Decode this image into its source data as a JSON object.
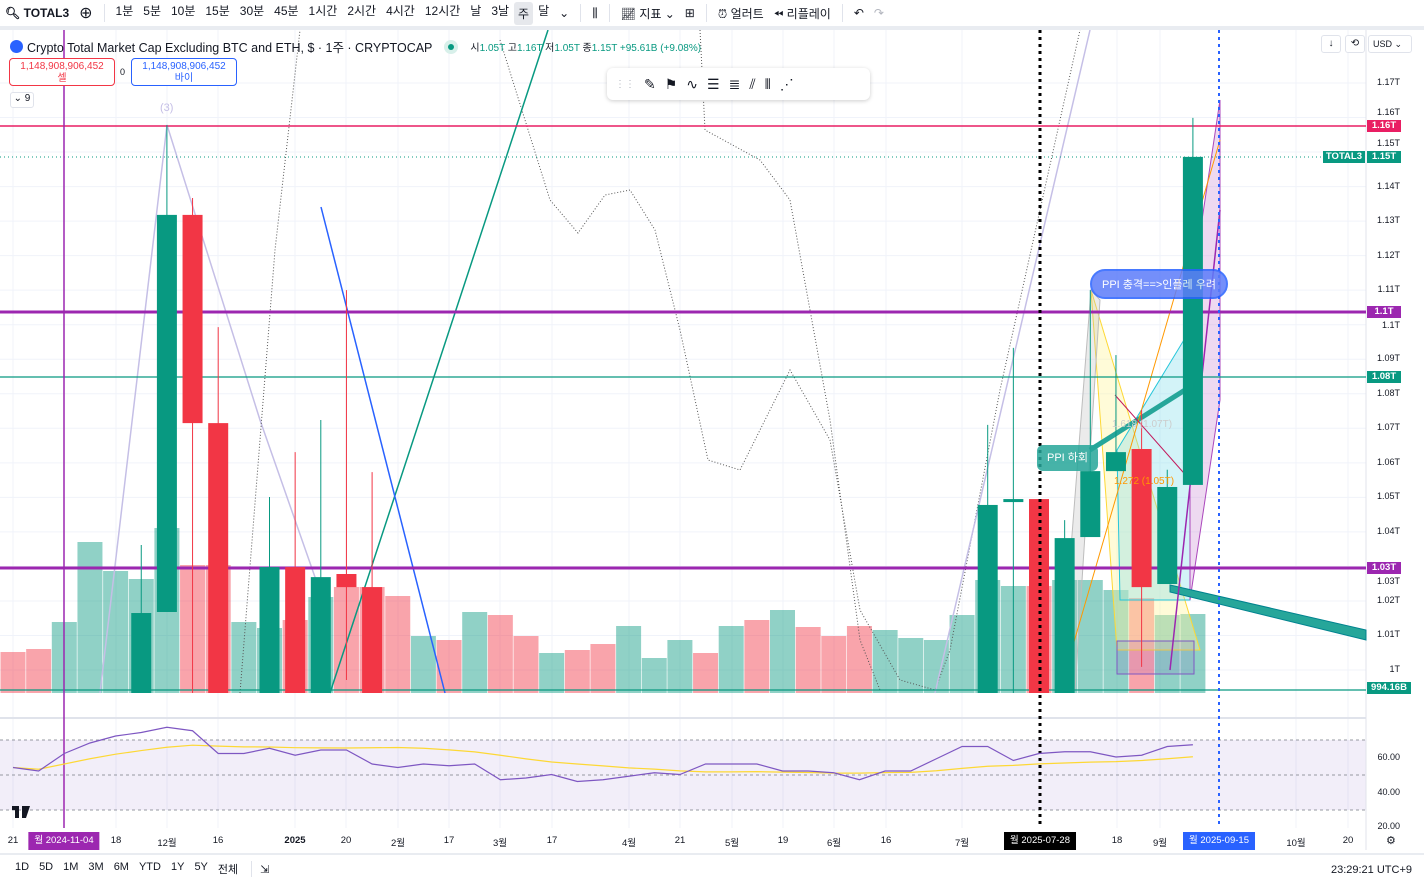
{
  "toolbar": {
    "symbol": "TOTAL3",
    "intervals": [
      "1분",
      "5분",
      "10분",
      "15분",
      "30분",
      "45분",
      "1시간",
      "2시간",
      "4시간",
      "12시간",
      "날",
      "3날",
      "주",
      "달"
    ],
    "active_interval": "주",
    "indicators": "지표",
    "alerts": "얼러트",
    "replay": "리플레이"
  },
  "legend": {
    "title": "Crypto Total Market Cap Excluding BTC and ETH, $ · 1주 · CRYPTOCAP",
    "o_k": "시",
    "o": "1.05T",
    "h_k": "고",
    "h": "1.16T",
    "l_k": "저",
    "l": "1.05T",
    "c_k": "종",
    "c": "1.15T",
    "change": "+95.61B (+9.08%)"
  },
  "trade": {
    "sell_price": "1,148,908,906,452",
    "sell_label": "셀",
    "spread": "0",
    "buy_price": "1,148,908,906,452",
    "buy_label": "바이"
  },
  "collapse_label": "9",
  "currency": "USD",
  "price_axis": [
    "1.17T",
    "1.16T",
    "1.15T",
    "1.14T",
    "1.13T",
    "1.12T",
    "1.11T",
    "1.1T",
    "1.09T",
    "1.08T",
    "1.07T",
    "1.06T",
    "1.05T",
    "1.04T",
    "1.03T",
    "1.02T",
    "1.01T",
    "1T"
  ],
  "price_tags": {
    "pink": "1.16T",
    "symbol_name": "TOTAL3",
    "last": "1.15T",
    "purple_top": "1.1T",
    "teal": "1.08T",
    "purple_low": "1.03T",
    "bottom": "994.16B"
  },
  "colors": {
    "up": "#089981",
    "down": "#f23645",
    "purple": "#9c27b0",
    "pink": "#e91e63",
    "blue": "#2962ff"
  },
  "annotations": {
    "ppi_shock": "PPI 충격==>인플레 우려",
    "ppi_fall": "PPI 하회",
    "fib1": "1.618 (1.07T)",
    "fib2": "1.272 (1.05T)",
    "wave3": "(3)"
  },
  "rsi_axis": [
    "60.00",
    "40.00",
    "20.00"
  ],
  "time_axis": [
    "21",
    "18",
    "12월",
    "16",
    "2025",
    "20",
    "2월",
    "17",
    "3월",
    "17",
    "4월",
    "21",
    "5월",
    "19",
    "6월",
    "16",
    "7월",
    "18",
    "9월",
    "10월",
    "20"
  ],
  "time_tags": {
    "left": "월 2024-11-04",
    "mid": "월 2025-07-28",
    "right": "월 2025-09-15"
  },
  "bottom": {
    "ranges": [
      "1D",
      "5D",
      "1M",
      "3M",
      "6M",
      "YTD",
      "1Y",
      "5Y",
      "전체"
    ],
    "clock": "23:29:21 UTC+9"
  },
  "chart_data": {
    "type": "candlestick",
    "unit": "T USD",
    "candles": [
      {
        "i": 5,
        "o": 0.9933,
        "h": 1.0362,
        "l": 0.9933,
        "c": 1.0165
      },
      {
        "i": 6,
        "o": 1.0168,
        "h": 1.1578,
        "l": 1.0168,
        "c": 1.1318
      },
      {
        "i": 7,
        "o": 1.1318,
        "h": 1.1367,
        "l": 0.9933,
        "c": 1.0715
      },
      {
        "i": 8,
        "o": 1.0715,
        "h": 1.0993,
        "l": 0.9933,
        "c": 0.9933
      },
      {
        "i": 10,
        "o": 0.9933,
        "h": 1.0501,
        "l": 0.9933,
        "c": 1.0298
      },
      {
        "i": 11,
        "o": 1.0298,
        "h": 1.0631,
        "l": 0.9933,
        "c": 0.9933
      },
      {
        "i": 12,
        "o": 0.9933,
        "h": 1.0724,
        "l": 0.9933,
        "c": 1.0269
      },
      {
        "i": 13,
        "o": 1.0278,
        "h": 1.11,
        "l": 0.9971,
        "c": 1.024
      },
      {
        "i": 14,
        "o": 1.024,
        "h": 1.0573,
        "l": 0.9933,
        "c": 0.9933
      },
      {
        "i": 38,
        "o": 0.9933,
        "h": 1.071,
        "l": 0.9933,
        "c": 1.0478
      },
      {
        "i": 39,
        "o": 1.0487,
        "h": 1.0933,
        "l": 0.9933,
        "c": 1.0495
      },
      {
        "i": 40,
        "o": 1.0495,
        "h": 1.0495,
        "l": 0.9933,
        "c": 0.9933
      },
      {
        "i": 41,
        "o": 0.9933,
        "h": 1.0434,
        "l": 0.9933,
        "c": 1.0382
      },
      {
        "i": 42,
        "o": 1.0385,
        "h": 1.11,
        "l": 1.0385,
        "c": 1.0576
      },
      {
        "i": 43,
        "o": 1.0576,
        "h": 1.0912,
        "l": 1.0576,
        "c": 1.0631
      },
      {
        "i": 44,
        "o": 1.064,
        "h": 1.0753,
        "l": 1.0009,
        "c": 1.024
      },
      {
        "i": 45,
        "o": 1.0249,
        "h": 1.058,
        "l": 1.0249,
        "c": 1.053
      },
      {
        "i": 46,
        "o": 1.0536,
        "h": 1.1599,
        "l": 1.0536,
        "c": 1.1486
      }
    ],
    "volume": [
      41,
      44,
      71,
      151,
      122,
      114,
      165,
      128,
      128,
      71,
      65,
      73,
      96,
      106,
      106,
      97,
      57,
      53,
      81,
      78,
      57,
      40,
      43,
      49,
      67,
      35,
      53,
      40,
      67,
      73,
      83,
      66,
      57,
      67,
      63,
      55,
      53,
      78,
      113,
      107,
      107,
      113,
      113,
      103,
      95,
      78,
      79
    ],
    "volume_up": [
      0,
      0,
      1,
      1,
      1,
      1,
      1,
      0,
      0,
      1,
      1,
      0,
      1,
      0,
      0,
      0,
      1,
      0,
      1,
      0,
      0,
      1,
      0,
      0,
      1,
      1,
      1,
      0,
      1,
      0,
      1,
      0,
      0,
      0,
      1,
      1,
      1,
      1,
      1,
      1,
      0,
      1,
      1,
      1,
      0,
      1,
      1
    ],
    "rsi": [
      54,
      52,
      62,
      68,
      72,
      74,
      77,
      75,
      62,
      62,
      65,
      61,
      64,
      64,
      56,
      54,
      56,
      55,
      56,
      47,
      48,
      50,
      46,
      47,
      49,
      51,
      50,
      56,
      56,
      56,
      52,
      52,
      51,
      47,
      52,
      52,
      59,
      66,
      66,
      58,
      62,
      63,
      63,
      60,
      61,
      66,
      67
    ],
    "rsi_range": [
      20,
      80
    ]
  }
}
